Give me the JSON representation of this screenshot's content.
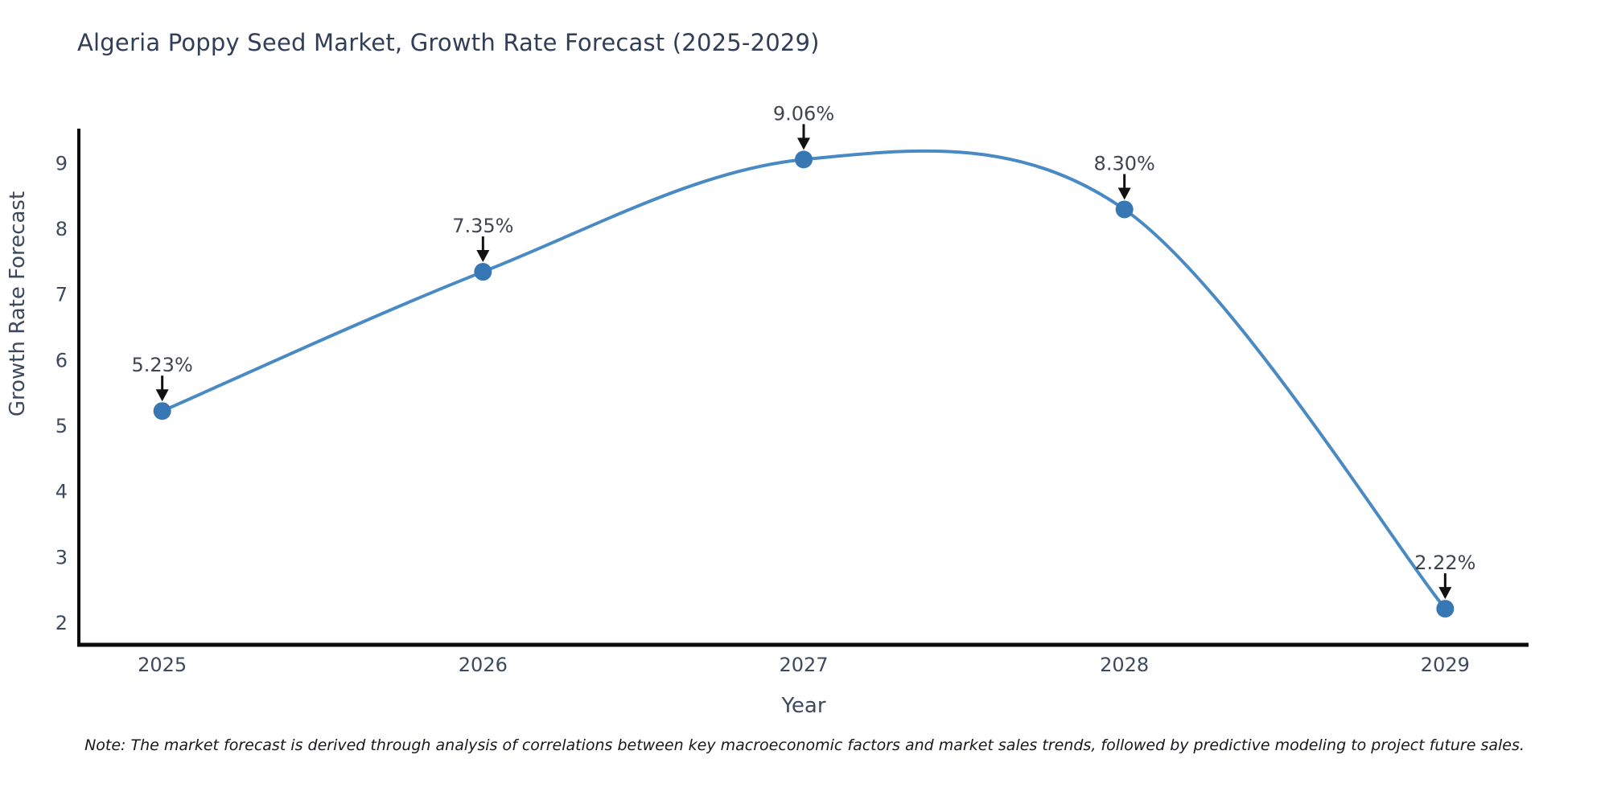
{
  "figure": {
    "title": "Algeria Poppy Seed Market, Growth Rate Forecast (2025-2029)",
    "note": "Note: The market forecast is derived through analysis of correlations between key macroeconomic factors and market sales trends, followed by predictive modeling to project future sales.",
    "background": "#ffffff"
  },
  "chart_data": {
    "type": "line",
    "line_shape": "spline",
    "title": "Algeria Poppy Seed Market, Growth Rate Forecast (2025-2029)",
    "xlabel": "Year",
    "ylabel": "Growth Rate Forecast",
    "x": [
      2025,
      2026,
      2027,
      2028,
      2029
    ],
    "series": [
      {
        "name": "Growth Rate Forecast",
        "values": [
          5.23,
          7.35,
          9.06,
          8.3,
          2.22
        ]
      }
    ],
    "point_labels": [
      "5.23%",
      "7.35%",
      "9.06%",
      "8.30%",
      "2.22%"
    ],
    "xticks": [
      "2025",
      "2026",
      "2027",
      "2028",
      "2029"
    ],
    "yticks": [
      2,
      3,
      4,
      5,
      6,
      7,
      8,
      9
    ],
    "xlim": [
      2024.74,
      2029.26
    ],
    "ylim": [
      1.67,
      9.53
    ],
    "grid": false,
    "legend": false,
    "colors": {
      "line": "#4a8ac4",
      "marker": "#3777b4",
      "arrow": "#111111",
      "axis": "#0c0c0c"
    }
  }
}
